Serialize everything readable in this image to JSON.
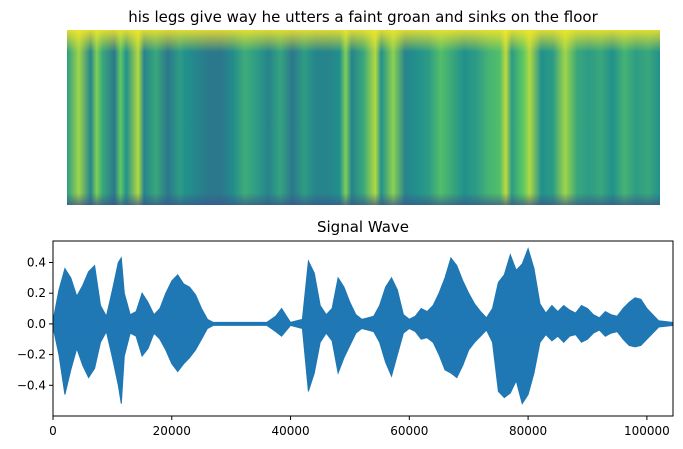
{
  "chart_data": [
    {
      "type": "heatmap",
      "title": "his legs give way he utters a faint groan and sinks on the floor",
      "axes_visible": false,
      "colormap": "viridis",
      "colormap_stops": [
        "#440154",
        "#3b528b",
        "#21918c",
        "#5ec962",
        "#fde725"
      ],
      "intensity_profile": {
        "x": [
          0.0,
          0.02,
          0.04,
          0.05,
          0.06,
          0.08,
          0.09,
          0.1,
          0.12,
          0.13,
          0.15,
          0.17,
          0.19,
          0.2,
          0.22,
          0.24,
          0.26,
          0.28,
          0.3,
          0.32,
          0.34,
          0.36,
          0.38,
          0.4,
          0.42,
          0.44,
          0.46,
          0.47,
          0.48,
          0.5,
          0.52,
          0.53,
          0.55,
          0.57,
          0.59,
          0.61,
          0.63,
          0.65,
          0.67,
          0.69,
          0.71,
          0.73,
          0.74,
          0.75,
          0.77,
          0.78,
          0.8,
          0.82,
          0.84,
          0.86,
          0.88,
          0.9,
          0.92,
          0.94,
          0.96,
          0.98,
          1.0
        ],
        "v": [
          0.55,
          0.85,
          0.45,
          0.8,
          0.6,
          0.4,
          0.75,
          0.5,
          0.88,
          0.45,
          0.6,
          0.4,
          0.55,
          0.5,
          0.45,
          0.4,
          0.4,
          0.48,
          0.62,
          0.55,
          0.45,
          0.58,
          0.4,
          0.55,
          0.45,
          0.45,
          0.5,
          0.8,
          0.45,
          0.6,
          0.88,
          0.5,
          0.82,
          0.45,
          0.5,
          0.55,
          0.7,
          0.6,
          0.5,
          0.55,
          0.65,
          0.7,
          0.9,
          0.55,
          0.75,
          0.88,
          0.5,
          0.55,
          0.85,
          0.6,
          0.55,
          0.6,
          0.5,
          0.65,
          0.55,
          0.6,
          0.5
        ]
      }
    },
    {
      "type": "line",
      "title": "Signal Wave",
      "xlabel": "",
      "ylabel": "",
      "xlim": [
        0,
        104400
      ],
      "ylim": [
        -0.6,
        0.54
      ],
      "xticks": [
        0,
        20000,
        40000,
        60000,
        80000,
        100000
      ],
      "yticks": [
        -0.4,
        -0.2,
        0.0,
        0.2,
        0.4
      ],
      "xtick_labels": [
        "0",
        "20000",
        "40000",
        "60000",
        "80000",
        "100000"
      ],
      "ytick_labels": [
        "−0.4",
        "−0.2",
        "0.0",
        "0.2",
        "0.4"
      ],
      "grid": false,
      "series": [
        {
          "color": "#1f77b4",
          "envelope": {
            "x": [
              0,
              1000,
              2000,
              3000,
              4000,
              5000,
              6000,
              7000,
              8000,
              9000,
              10000,
              11000,
              11500,
              12000,
              13000,
              14000,
              15000,
              16000,
              17000,
              18000,
              19000,
              20000,
              21000,
              22000,
              23000,
              24000,
              25000,
              26000,
              27000,
              30000,
              36000,
              37500,
              38500,
              40000,
              42000,
              43000,
              44000,
              45000,
              46000,
              47000,
              48000,
              49000,
              50000,
              51000,
              52000,
              53000,
              54000,
              55000,
              56000,
              57000,
              58000,
              59000,
              60000,
              61000,
              62000,
              63000,
              64000,
              65000,
              66000,
              67000,
              68000,
              69000,
              70000,
              71000,
              72000,
              73000,
              74000,
              75000,
              76000,
              77000,
              78000,
              79000,
              80000,
              81000,
              82000,
              83000,
              84000,
              85000,
              86000,
              87000,
              88000,
              89000,
              90000,
              91000,
              92000,
              93000,
              94000,
              95000,
              96000,
              97000,
              98000,
              99000,
              100000,
              101000,
              102000,
              104400
            ],
            "upper": [
              0.02,
              0.22,
              0.36,
              0.3,
              0.18,
              0.25,
              0.34,
              0.38,
              0.12,
              0.05,
              0.22,
              0.4,
              0.43,
              0.2,
              0.06,
              0.08,
              0.2,
              0.14,
              0.06,
              0.1,
              0.2,
              0.28,
              0.32,
              0.26,
              0.24,
              0.19,
              0.1,
              0.03,
              0.01,
              0.01,
              0.01,
              0.05,
              0.1,
              0.01,
              0.03,
              0.41,
              0.33,
              0.12,
              0.06,
              0.1,
              0.3,
              0.24,
              0.14,
              0.06,
              0.03,
              0.04,
              0.05,
              0.12,
              0.24,
              0.3,
              0.22,
              0.06,
              0.03,
              0.05,
              0.1,
              0.08,
              0.12,
              0.2,
              0.3,
              0.43,
              0.38,
              0.28,
              0.2,
              0.13,
              0.08,
              0.04,
              0.1,
              0.27,
              0.32,
              0.45,
              0.35,
              0.39,
              0.49,
              0.36,
              0.13,
              0.07,
              0.12,
              0.08,
              0.12,
              0.09,
              0.07,
              0.12,
              0.1,
              0.06,
              0.04,
              0.08,
              0.06,
              0.05,
              0.1,
              0.14,
              0.17,
              0.16,
              0.1,
              0.06,
              0.02,
              0.01
            ],
            "lower": [
              -0.02,
              -0.2,
              -0.46,
              -0.3,
              -0.16,
              -0.27,
              -0.35,
              -0.29,
              -0.12,
              -0.05,
              -0.22,
              -0.4,
              -0.52,
              -0.21,
              -0.06,
              -0.08,
              -0.21,
              -0.16,
              -0.06,
              -0.1,
              -0.17,
              -0.26,
              -0.31,
              -0.26,
              -0.22,
              -0.17,
              -0.1,
              -0.03,
              -0.01,
              -0.01,
              -0.01,
              -0.05,
              -0.08,
              -0.01,
              -0.03,
              -0.44,
              -0.32,
              -0.12,
              -0.06,
              -0.11,
              -0.32,
              -0.22,
              -0.14,
              -0.06,
              -0.03,
              -0.04,
              -0.05,
              -0.12,
              -0.25,
              -0.34,
              -0.2,
              -0.06,
              -0.03,
              -0.05,
              -0.1,
              -0.09,
              -0.12,
              -0.2,
              -0.3,
              -0.32,
              -0.35,
              -0.27,
              -0.17,
              -0.12,
              -0.08,
              -0.04,
              -0.12,
              -0.44,
              -0.48,
              -0.45,
              -0.37,
              -0.52,
              -0.46,
              -0.32,
              -0.12,
              -0.07,
              -0.11,
              -0.08,
              -0.12,
              -0.08,
              -0.07,
              -0.12,
              -0.1,
              -0.06,
              -0.04,
              -0.08,
              -0.06,
              -0.05,
              -0.1,
              -0.14,
              -0.15,
              -0.14,
              -0.1,
              -0.06,
              -0.02,
              -0.01
            ]
          }
        }
      ]
    }
  ]
}
